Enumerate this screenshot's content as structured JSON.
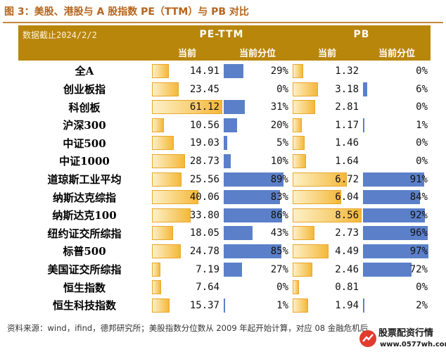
{
  "title": "图 3：美股、港股与 A 股指数 PE（TTM）与 PB 对比",
  "table": {
    "date_label": "数据截止2024/2/2",
    "groups": [
      "PE-TTM",
      "PB"
    ],
    "subheaders": [
      "当前",
      "当前分位",
      "当前",
      "当前分位"
    ]
  },
  "chart_data": {
    "type": "table",
    "columns": [
      "当前",
      "当前分位",
      "当前",
      "当前分位"
    ],
    "rows": [
      {
        "name": "全A",
        "pe": "14.91",
        "pe_pct": "29%",
        "pb": "1.32",
        "pb_pct": "0%"
      },
      {
        "name": "创业板指",
        "pe": "23.45",
        "pe_pct": "0%",
        "pb": "3.18",
        "pb_pct": "6%"
      },
      {
        "name": "科创板",
        "pe": "61.12",
        "pe_pct": "31%",
        "pb": "2.81",
        "pb_pct": "0%"
      },
      {
        "name": "沪深300",
        "pe": "10.56",
        "pe_pct": "20%",
        "pb": "1.17",
        "pb_pct": "1%"
      },
      {
        "name": "中证500",
        "pe": "19.03",
        "pe_pct": "5%",
        "pb": "1.46",
        "pb_pct": "0%"
      },
      {
        "name": "中证1000",
        "pe": "28.73",
        "pe_pct": "10%",
        "pb": "1.64",
        "pb_pct": "0%"
      },
      {
        "name": "道琼斯工业平均",
        "pe": "25.56",
        "pe_pct": "89%",
        "pb": "6.72",
        "pb_pct": "91%"
      },
      {
        "name": "纳斯达克综指",
        "pe": "40.06",
        "pe_pct": "83%",
        "pb": "6.04",
        "pb_pct": "84%"
      },
      {
        "name": "纳斯达克100",
        "pe": "33.80",
        "pe_pct": "86%",
        "pb": "8.56",
        "pb_pct": "92%"
      },
      {
        "name": "纽约证交所综指",
        "pe": "18.05",
        "pe_pct": "43%",
        "pb": "2.73",
        "pb_pct": "96%"
      },
      {
        "name": "标普500",
        "pe": "24.78",
        "pe_pct": "85%",
        "pb": "4.49",
        "pb_pct": "97%"
      },
      {
        "name": "美国证交所综指",
        "pe": "7.19",
        "pe_pct": "27%",
        "pb": "2.46",
        "pb_pct": "72%"
      },
      {
        "name": "恒生指数",
        "pe": "7.64",
        "pe_pct": "0%",
        "pb": "0.81",
        "pb_pct": "0%"
      },
      {
        "name": "恒生科技指数",
        "pe": "15.37",
        "pe_pct": "1%",
        "pb": "1.94",
        "pb_pct": "2%"
      }
    ]
  },
  "colors": {
    "header_bg": "#b8860b",
    "pe_bar": "#f4b83a",
    "pct_bar": "#5b80c9",
    "title": "#b5651d"
  },
  "source": "资料来源：wind，ifind，德邦研究所；美股指数分位数从 2009 年起开始计算，对应 08 金融危机后",
  "watermark": {
    "name": "股票配资行情",
    "url": "www.0577wh.com"
  }
}
